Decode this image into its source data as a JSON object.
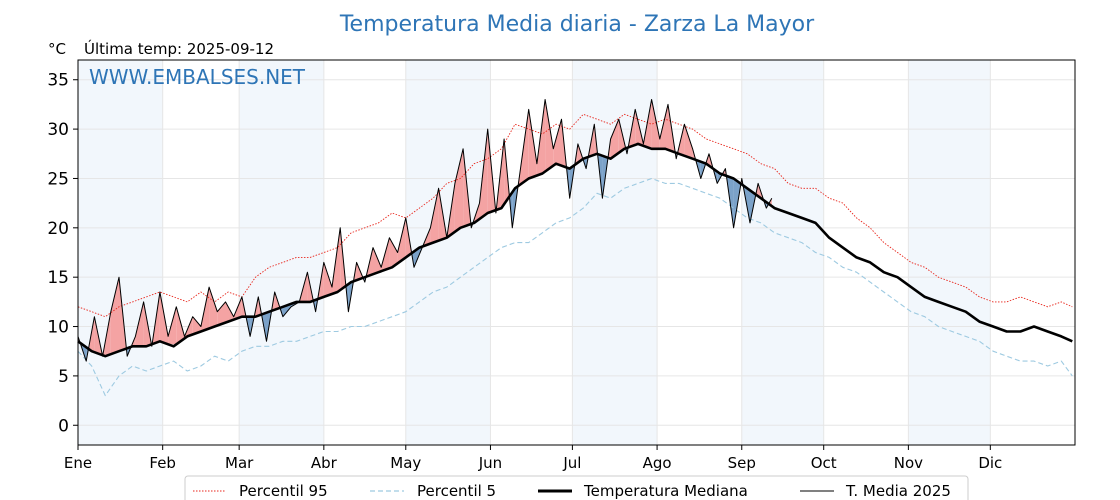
{
  "chart_data": {
    "type": "line",
    "title": "Temperatura Media diaria - Zarza La Mayor",
    "unit": "°C",
    "last_temp_text": "Última temp: 2025-09-12",
    "watermark": "WWW.EMBALSES.NET",
    "xlabel": "",
    "ylabel": "",
    "ylim": [
      -2,
      37
    ],
    "xlim_days": [
      0,
      365
    ],
    "grid": true,
    "legend_position": "bottom",
    "y_ticks": [
      0,
      5,
      10,
      15,
      20,
      25,
      30,
      35
    ],
    "month_labels": [
      "Ene",
      "Feb",
      "Mar",
      "Abr",
      "May",
      "Jun",
      "Jul",
      "Ago",
      "Sep",
      "Oct",
      "Nov",
      "Dic"
    ],
    "colors": {
      "title": "#2e75b6",
      "p95": "#e8261c",
      "p5": "#9ecae1",
      "median": "#000000",
      "current": "#000000",
      "above_fill": "#f4a3a3",
      "below_fill": "#7ba2c9",
      "month_band": "#f2f7fc"
    },
    "series": [
      {
        "name": "Percentil 95",
        "style": "dotted",
        "x": [
          0,
          5,
          10,
          15,
          20,
          25,
          30,
          35,
          40,
          45,
          50,
          55,
          60,
          65,
          70,
          75,
          80,
          85,
          90,
          95,
          100,
          105,
          110,
          115,
          120,
          125,
          130,
          135,
          140,
          145,
          150,
          155,
          160,
          165,
          170,
          175,
          180,
          185,
          190,
          195,
          200,
          205,
          210,
          215,
          220,
          225,
          230,
          235,
          240,
          245,
          250,
          255,
          260,
          265,
          270,
          275,
          280,
          285,
          290,
          295,
          300,
          305,
          310,
          315,
          320,
          325,
          330,
          335,
          340,
          345,
          350,
          355,
          360,
          364
        ],
        "values": [
          12.0,
          11.5,
          11.0,
          12.0,
          12.5,
          13.0,
          13.5,
          13.0,
          12.5,
          13.5,
          12.5,
          13.5,
          13.0,
          15.0,
          16.0,
          16.5,
          17.0,
          17.0,
          17.5,
          18.0,
          19.5,
          20.0,
          20.5,
          21.5,
          21.0,
          22.0,
          23.0,
          24.5,
          25.0,
          26.5,
          27.0,
          28.0,
          30.5,
          30.0,
          29.5,
          30.5,
          30.0,
          31.5,
          31.0,
          30.5,
          31.5,
          31.0,
          30.5,
          31.0,
          30.5,
          30.0,
          29.0,
          28.5,
          28.0,
          27.5,
          26.5,
          26.0,
          24.5,
          24.0,
          24.0,
          23.0,
          22.5,
          21.0,
          20.0,
          18.5,
          17.5,
          16.5,
          16.0,
          15.0,
          14.5,
          14.0,
          13.0,
          12.5,
          12.5,
          13.0,
          12.5,
          12.0,
          12.5,
          12.0
        ]
      },
      {
        "name": "Percentil 5",
        "style": "dashed",
        "x": [
          0,
          5,
          10,
          15,
          20,
          25,
          30,
          35,
          40,
          45,
          50,
          55,
          60,
          65,
          70,
          75,
          80,
          85,
          90,
          95,
          100,
          105,
          110,
          115,
          120,
          125,
          130,
          135,
          140,
          145,
          150,
          155,
          160,
          165,
          170,
          175,
          180,
          185,
          190,
          195,
          200,
          205,
          210,
          215,
          220,
          225,
          230,
          235,
          240,
          245,
          250,
          255,
          260,
          265,
          270,
          275,
          280,
          285,
          290,
          295,
          300,
          305,
          310,
          315,
          320,
          325,
          330,
          335,
          340,
          345,
          350,
          355,
          360,
          364
        ],
        "values": [
          7.5,
          6.0,
          3.0,
          5.0,
          6.0,
          5.5,
          6.0,
          6.5,
          5.5,
          6.0,
          7.0,
          6.5,
          7.5,
          8.0,
          8.0,
          8.5,
          8.5,
          9.0,
          9.5,
          9.5,
          10.0,
          10.0,
          10.5,
          11.0,
          11.5,
          12.5,
          13.5,
          14.0,
          15.0,
          16.0,
          17.0,
          18.0,
          18.5,
          18.5,
          19.5,
          20.5,
          21.0,
          22.0,
          23.5,
          23.0,
          24.0,
          24.5,
          25.0,
          24.5,
          24.5,
          24.0,
          23.5,
          23.0,
          22.0,
          21.0,
          20.5,
          19.5,
          19.0,
          18.5,
          17.5,
          17.0,
          16.0,
          15.5,
          14.5,
          13.5,
          12.5,
          11.5,
          11.0,
          10.0,
          9.5,
          9.0,
          8.5,
          7.5,
          7.0,
          6.5,
          6.5,
          6.0,
          6.5,
          5.0
        ]
      },
      {
        "name": "Temperatura Mediana",
        "style": "solid-thick",
        "x": [
          0,
          5,
          10,
          15,
          20,
          25,
          30,
          35,
          40,
          45,
          50,
          55,
          60,
          65,
          70,
          75,
          80,
          85,
          90,
          95,
          100,
          105,
          110,
          115,
          120,
          125,
          130,
          135,
          140,
          145,
          150,
          155,
          160,
          165,
          170,
          175,
          180,
          185,
          190,
          195,
          200,
          205,
          210,
          215,
          220,
          225,
          230,
          235,
          240,
          245,
          250,
          255,
          260,
          265,
          270,
          275,
          280,
          285,
          290,
          295,
          300,
          305,
          310,
          315,
          320,
          325,
          330,
          335,
          340,
          345,
          350,
          355,
          360,
          364
        ],
        "values": [
          8.5,
          7.5,
          7.0,
          7.5,
          8.0,
          8.0,
          8.5,
          8.0,
          9.0,
          9.5,
          10.0,
          10.5,
          11.0,
          11.0,
          11.5,
          12.0,
          12.5,
          12.5,
          13.0,
          13.5,
          14.5,
          15.0,
          15.5,
          16.0,
          17.0,
          18.0,
          18.5,
          19.0,
          20.0,
          20.5,
          21.5,
          22.0,
          24.0,
          25.0,
          25.5,
          26.5,
          26.0,
          27.0,
          27.5,
          27.0,
          28.0,
          28.5,
          28.0,
          28.0,
          27.5,
          27.0,
          26.5,
          25.5,
          25.0,
          24.0,
          23.0,
          22.0,
          21.5,
          21.0,
          20.5,
          19.0,
          18.0,
          17.0,
          16.5,
          15.5,
          15.0,
          14.0,
          13.0,
          12.5,
          12.0,
          11.5,
          10.5,
          10.0,
          9.5,
          9.5,
          10.0,
          9.5,
          9.0,
          8.5
        ]
      },
      {
        "name": "T. Media 2025",
        "style": "solid-thin",
        "x": [
          0,
          3,
          6,
          9,
          12,
          15,
          18,
          21,
          24,
          27,
          30,
          33,
          36,
          39,
          42,
          45,
          48,
          51,
          54,
          57,
          60,
          63,
          66,
          69,
          72,
          75,
          78,
          81,
          84,
          87,
          90,
          93,
          96,
          99,
          102,
          105,
          108,
          111,
          114,
          117,
          120,
          123,
          126,
          129,
          132,
          135,
          138,
          141,
          144,
          147,
          150,
          153,
          156,
          159,
          162,
          165,
          168,
          171,
          174,
          177,
          180,
          183,
          186,
          189,
          192,
          195,
          198,
          201,
          204,
          207,
          210,
          213,
          216,
          219,
          222,
          225,
          228,
          231,
          234,
          237,
          240,
          243,
          246,
          249,
          252,
          254
        ],
        "values": [
          9.0,
          6.5,
          11.0,
          7.0,
          11.5,
          15.0,
          7.0,
          9.0,
          12.5,
          8.0,
          13.5,
          9.0,
          12.0,
          9.0,
          11.0,
          10.0,
          14.0,
          11.5,
          12.5,
          11.0,
          13.0,
          9.0,
          13.0,
          8.5,
          13.5,
          11.0,
          12.0,
          12.5,
          15.5,
          11.5,
          16.5,
          14.0,
          20.0,
          11.5,
          16.5,
          14.5,
          18.0,
          16.0,
          19.0,
          17.5,
          21.0,
          16.0,
          18.0,
          20.0,
          24.0,
          19.0,
          24.5,
          28.0,
          20.0,
          22.5,
          30.0,
          21.5,
          29.0,
          20.0,
          26.0,
          32.0,
          26.5,
          33.0,
          28.0,
          31.0,
          23.0,
          28.5,
          26.0,
          30.5,
          23.0,
          29.0,
          31.0,
          27.5,
          32.0,
          28.5,
          33.0,
          29.0,
          32.5,
          27.0,
          30.5,
          28.0,
          25.0,
          27.5,
          24.5,
          26.0,
          20.0,
          25.0,
          20.5,
          24.5,
          22.0,
          23.0
        ]
      }
    ]
  }
}
